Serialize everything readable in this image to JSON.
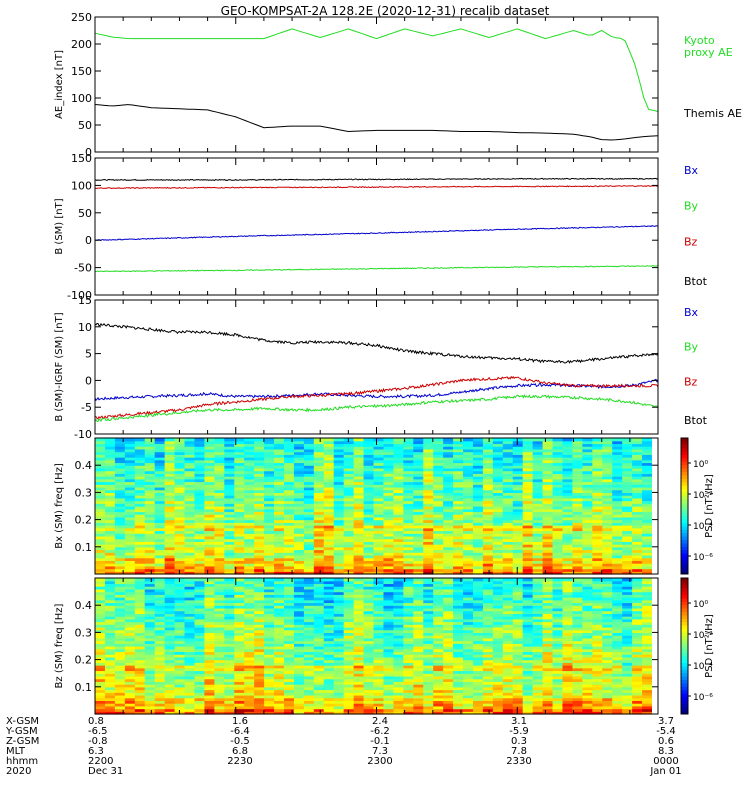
{
  "title": "GEO-KOMPSAT-2A 128.2E (2020-12-31) recalib dataset",
  "colors": {
    "black": "#000000",
    "red": "#cc0000",
    "green": "#22dd22",
    "blue": "#0000cc"
  },
  "chart_data": [
    {
      "type": "line",
      "ylabel": "AE_index [nT]",
      "ylim": [
        0,
        250
      ],
      "yticks": [
        0,
        50,
        100,
        150,
        200,
        250
      ],
      "x": [
        0,
        0.03,
        0.06,
        0.1,
        0.15,
        0.2,
        0.25,
        0.3,
        0.35,
        0.4,
        0.45,
        0.5,
        0.55,
        0.6,
        0.65,
        0.7,
        0.75,
        0.8,
        0.85,
        0.88,
        0.9,
        0.92,
        0.94,
        0.96,
        0.98,
        1
      ],
      "series": [
        {
          "name": "Kyoto proxy AE",
          "label_lines": [
            "Kyoto",
            "proxy AE"
          ],
          "color": "#22dd22",
          "values": [
            220,
            213,
            210,
            210,
            210,
            210,
            210,
            210,
            228,
            212,
            228,
            210,
            228,
            215,
            228,
            212,
            228,
            210,
            225,
            215,
            225,
            212,
            210,
            160,
            80,
            75
          ]
        },
        {
          "name": "Themis AE",
          "label_lines": [
            "Themis AE"
          ],
          "color": "#000000",
          "values": [
            88,
            85,
            88,
            82,
            80,
            78,
            65,
            45,
            48,
            48,
            38,
            40,
            40,
            40,
            38,
            38,
            36,
            35,
            33,
            28,
            23,
            22,
            24,
            27,
            29,
            30
          ]
        }
      ]
    },
    {
      "type": "line",
      "ylabel": "B (SM) [nT]",
      "ylim": [
        -100,
        150
      ],
      "yticks": [
        -100,
        -50,
        0,
        50,
        100,
        150
      ],
      "x": [
        0,
        0.25,
        0.5,
        0.75,
        1
      ],
      "noise": 0.8,
      "legend": [
        "Bx",
        "By",
        "Bz",
        "Btot"
      ],
      "series": [
        {
          "name": "Btot",
          "color": "#000000",
          "values": [
            110,
            110,
            111,
            112,
            112
          ]
        },
        {
          "name": "Bz",
          "color": "#cc0000",
          "values": [
            95,
            96,
            97,
            98,
            99
          ]
        },
        {
          "name": "Bx",
          "color": "#0000cc",
          "values": [
            0,
            7,
            13,
            20,
            26
          ]
        },
        {
          "name": "By",
          "color": "#22dd22",
          "values": [
            -57,
            -55,
            -52,
            -49,
            -47
          ]
        }
      ]
    },
    {
      "type": "line",
      "ylabel": "B (SM)-IGRF (SM) [nT]",
      "ylim": [
        -10,
        15
      ],
      "yticks": [
        -10,
        -5,
        0,
        5,
        10,
        15
      ],
      "x": [
        0,
        0.05,
        0.1,
        0.15,
        0.2,
        0.25,
        0.3,
        0.35,
        0.4,
        0.45,
        0.5,
        0.55,
        0.6,
        0.65,
        0.7,
        0.75,
        0.8,
        0.85,
        0.9,
        0.95,
        1
      ],
      "noise": 0.25,
      "legend": [
        "Bx",
        "By",
        "Bz",
        "Btot"
      ],
      "series": [
        {
          "name": "Btot",
          "color": "#000000",
          "values": [
            10.5,
            10,
            9.5,
            9,
            9,
            8.5,
            7.5,
            7,
            7.2,
            7,
            6.5,
            5.5,
            5,
            4.5,
            4.2,
            4,
            3.5,
            3.5,
            4,
            4.5,
            5
          ]
        },
        {
          "name": "Bx",
          "color": "#0000cc",
          "values": [
            -3.5,
            -3.2,
            -3,
            -2.8,
            -2.5,
            -3,
            -3,
            -2.8,
            -2.5,
            -2.8,
            -3,
            -3,
            -2.8,
            -2.2,
            -1.5,
            -1,
            -0.8,
            -1,
            -1.2,
            -1,
            0
          ]
        },
        {
          "name": "Bz",
          "color": "#cc0000",
          "values": [
            -7,
            -6.5,
            -6,
            -5.5,
            -4.5,
            -4,
            -3.5,
            -3,
            -2.8,
            -2.5,
            -2,
            -1.5,
            -0.8,
            0,
            0.3,
            0.5,
            -0.5,
            -1,
            -1,
            -1,
            -1
          ]
        },
        {
          "name": "By",
          "color": "#22dd22",
          "values": [
            -7.5,
            -7,
            -6.5,
            -6,
            -5.5,
            -5.5,
            -5.2,
            -5.5,
            -5.5,
            -5,
            -4.8,
            -4.5,
            -4,
            -3.8,
            -3.5,
            -3,
            -3,
            -3.2,
            -3.5,
            -4,
            -5
          ]
        }
      ]
    },
    {
      "type": "heatmap",
      "ylabel": "Bx (SM) freq [Hz]",
      "ylim": [
        0,
        0.5
      ],
      "yticks": [
        0.1,
        0.2,
        0.3,
        0.4
      ],
      "colorbar_label": "PSD [nT²/Hz]",
      "colorbar_ticks": [
        "10⁰",
        "10⁻²",
        "10⁻⁴",
        "10⁻⁶"
      ],
      "seed": 7
    },
    {
      "type": "heatmap",
      "ylabel": "Bz (SM) freq [Hz]",
      "ylim": [
        0,
        0.5
      ],
      "yticks": [
        0.1,
        0.2,
        0.3,
        0.4
      ],
      "colorbar_label": "PSD [nT²/Hz]",
      "colorbar_ticks": [
        "10⁰",
        "10⁻²",
        "10⁻⁴",
        "10⁻⁶"
      ],
      "seed": 19
    }
  ],
  "xaxis": {
    "row_labels": [
      "X-GSM",
      "Y-GSM",
      "Z-GSM",
      "MLT",
      "hhmm",
      "2020"
    ],
    "ticks": [
      {
        "values": [
          "0.8",
          "-6.5",
          "-0.8",
          "6.3",
          "2200",
          "Dec 31"
        ]
      },
      {
        "values": [
          "1.6",
          "-6.4",
          "-0.5",
          "6.8",
          "2230",
          ""
        ]
      },
      {
        "values": [
          "2.4",
          "-6.2",
          "-0.1",
          "7.3",
          "2300",
          ""
        ]
      },
      {
        "values": [
          "3.1",
          "-5.9",
          "0.3",
          "7.8",
          "2330",
          ""
        ]
      },
      {
        "values": [
          "3.7",
          "-5.4",
          "0.6",
          "8.3",
          "0000",
          "Jan 01"
        ]
      }
    ]
  }
}
